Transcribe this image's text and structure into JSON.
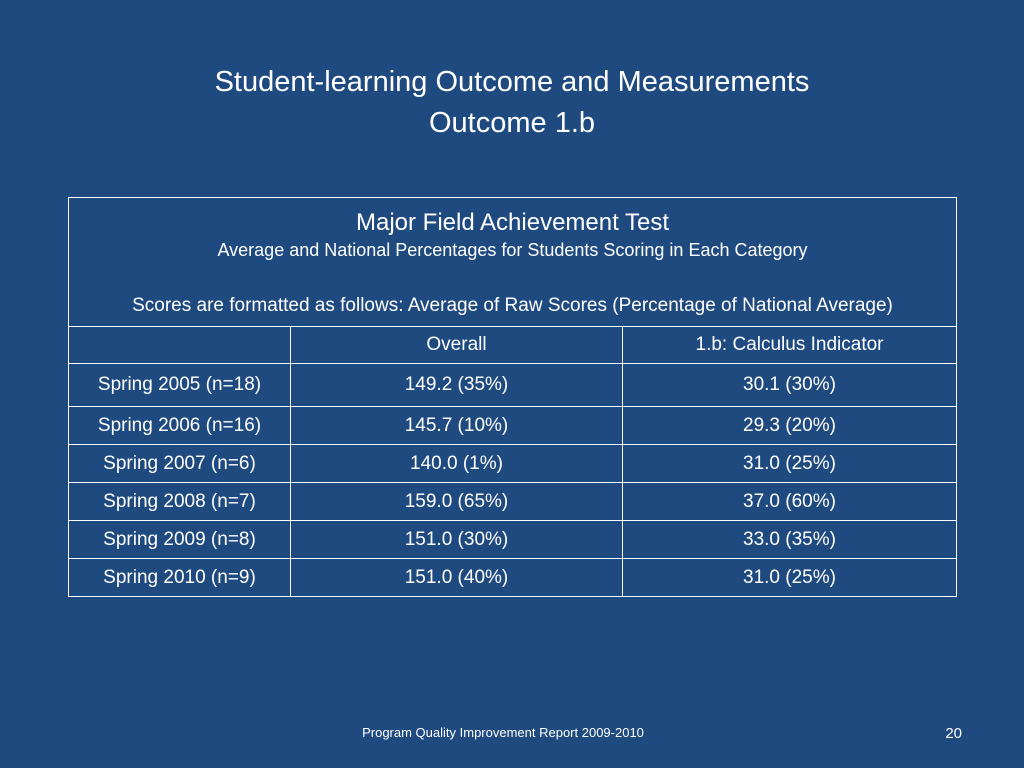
{
  "slide": {
    "title_line1": "Student-learning Outcome and Measurements",
    "title_line2": "Outcome 1.b"
  },
  "table": {
    "caption_title": "Major Field Achievement Test",
    "caption_subtitle": "Average and National Percentages for Students Scoring in Each Category",
    "caption_format": "Scores are formatted as follows: Average of Raw Scores (Percentage of National Average)",
    "headers": [
      "",
      "Overall",
      "1.b: Calculus Indicator"
    ],
    "rows": [
      [
        "Spring 2005 (n=18)",
        "149.2 (35%)",
        "30.1 (30%)"
      ],
      [
        "Spring 2006 (n=16)",
        "145.7 (10%)",
        "29.3 (20%)"
      ],
      [
        "Spring 2007 (n=6)",
        "140.0 (1%)",
        "31.0 (25%)"
      ],
      [
        "Spring 2008 (n=7)",
        "159.0 (65%)",
        "37.0 (60%)"
      ],
      [
        "Spring 2009 (n=8)",
        "151.0 (30%)",
        "33.0 (35%)"
      ],
      [
        "Spring 2010 (n=9)",
        "151.0 (40%)",
        "31.0 (25%)"
      ]
    ]
  },
  "footer": {
    "text": "Program Quality Improvement Report 2009-2010",
    "page_number": "20"
  },
  "colors": {
    "background": "#1f4a80",
    "text": "#ffffff"
  }
}
